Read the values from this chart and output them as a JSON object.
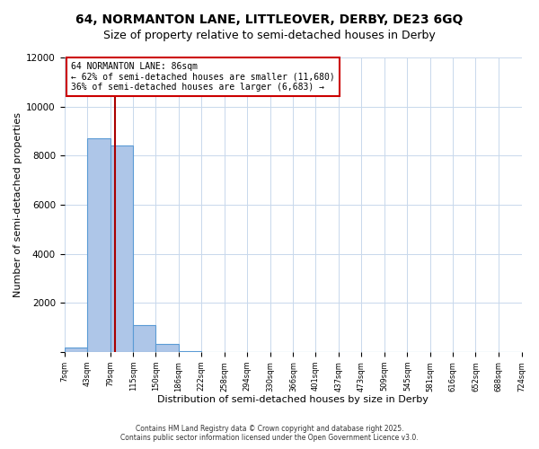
{
  "title_line1": "64, NORMANTON LANE, LITTLEOVER, DERBY, DE23 6GQ",
  "title_line2": "Size of property relative to semi-detached houses in Derby",
  "xlabel": "Distribution of semi-detached houses by size in Derby",
  "ylabel": "Number of semi-detached properties",
  "bar_edges": [
    7,
    43,
    79,
    115,
    150,
    186,
    222,
    258,
    294,
    330,
    366,
    401,
    437,
    473,
    509,
    545,
    581,
    616,
    652,
    688,
    724
  ],
  "bar_heights": [
    200,
    8700,
    8400,
    1100,
    320,
    50,
    0,
    0,
    0,
    0,
    0,
    0,
    0,
    0,
    0,
    0,
    0,
    0,
    0,
    0
  ],
  "bar_color": "#aec6e8",
  "bar_edge_color": "#5b9bd5",
  "vline_color": "#aa0000",
  "vline_x": 86,
  "annotation_title": "64 NORMANTON LANE: 86sqm",
  "annotation_line1": "← 62% of semi-detached houses are smaller (11,680)",
  "annotation_line2": "36% of semi-detached houses are larger (6,683) →",
  "annotation_box_edgecolor": "#cc0000",
  "ylim": [
    0,
    12000
  ],
  "yticks": [
    0,
    2000,
    4000,
    6000,
    8000,
    10000,
    12000
  ],
  "tick_labels": [
    "7sqm",
    "43sqm",
    "79sqm",
    "115sqm",
    "150sqm",
    "186sqm",
    "222sqm",
    "258sqm",
    "294sqm",
    "330sqm",
    "366sqm",
    "401sqm",
    "437sqm",
    "473sqm",
    "509sqm",
    "545sqm",
    "581sqm",
    "616sqm",
    "652sqm",
    "688sqm",
    "724sqm"
  ],
  "footer_line1": "Contains HM Land Registry data © Crown copyright and database right 2025.",
  "footer_line2": "Contains public sector information licensed under the Open Government Licence v3.0.",
  "bg_color": "#ffffff",
  "grid_color": "#c8d8ec",
  "title_fontsize": 10,
  "subtitle_fontsize": 9
}
